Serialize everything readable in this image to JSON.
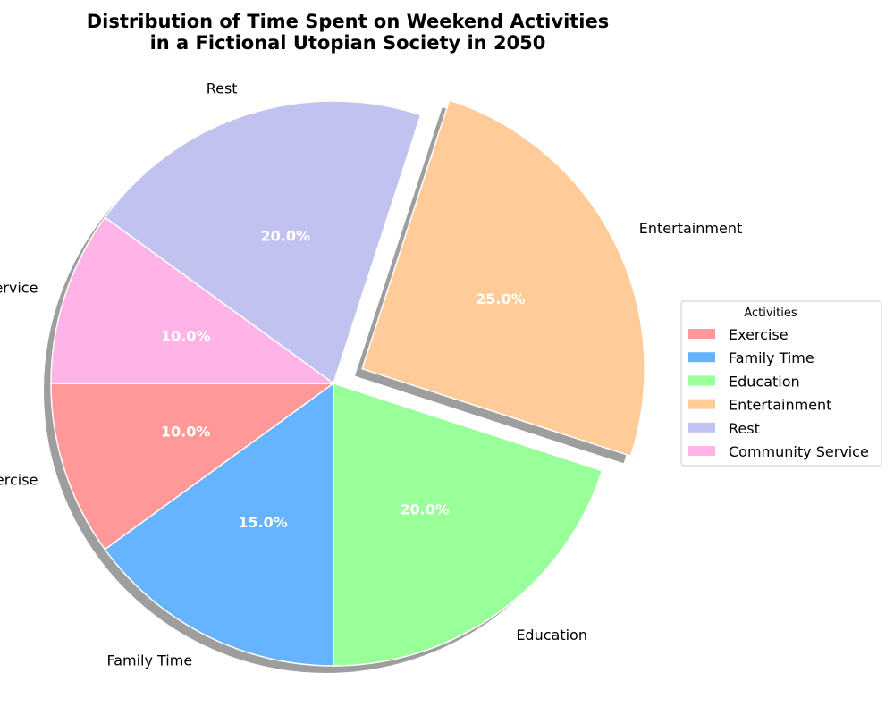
{
  "chart_data": {
    "type": "pie",
    "title": "Distribution of Time Spent on Weekend Activities\nin a Fictional Utopian Society in 2050",
    "categories": [
      "Exercise",
      "Family Time",
      "Education",
      "Entertainment",
      "Rest",
      "Community Service"
    ],
    "values": [
      10.0,
      15.0,
      20.0,
      25.0,
      20.0,
      10.0
    ],
    "percent_labels": [
      "10.0%",
      "15.0%",
      "20.0%",
      "25.0%",
      "20.0%",
      "10.0%"
    ],
    "colors": [
      "#ff9999",
      "#66b3ff",
      "#99ff99",
      "#ffcc99",
      "#c2c2f0",
      "#ffb3e6"
    ],
    "exploded": [
      "Entertainment"
    ],
    "shadow": true,
    "legend": {
      "title": "Activities",
      "placement": "center-right",
      "entries": [
        "Exercise",
        "Family Time",
        "Education",
        "Entertainment",
        "Rest",
        "Community Service"
      ]
    }
  }
}
